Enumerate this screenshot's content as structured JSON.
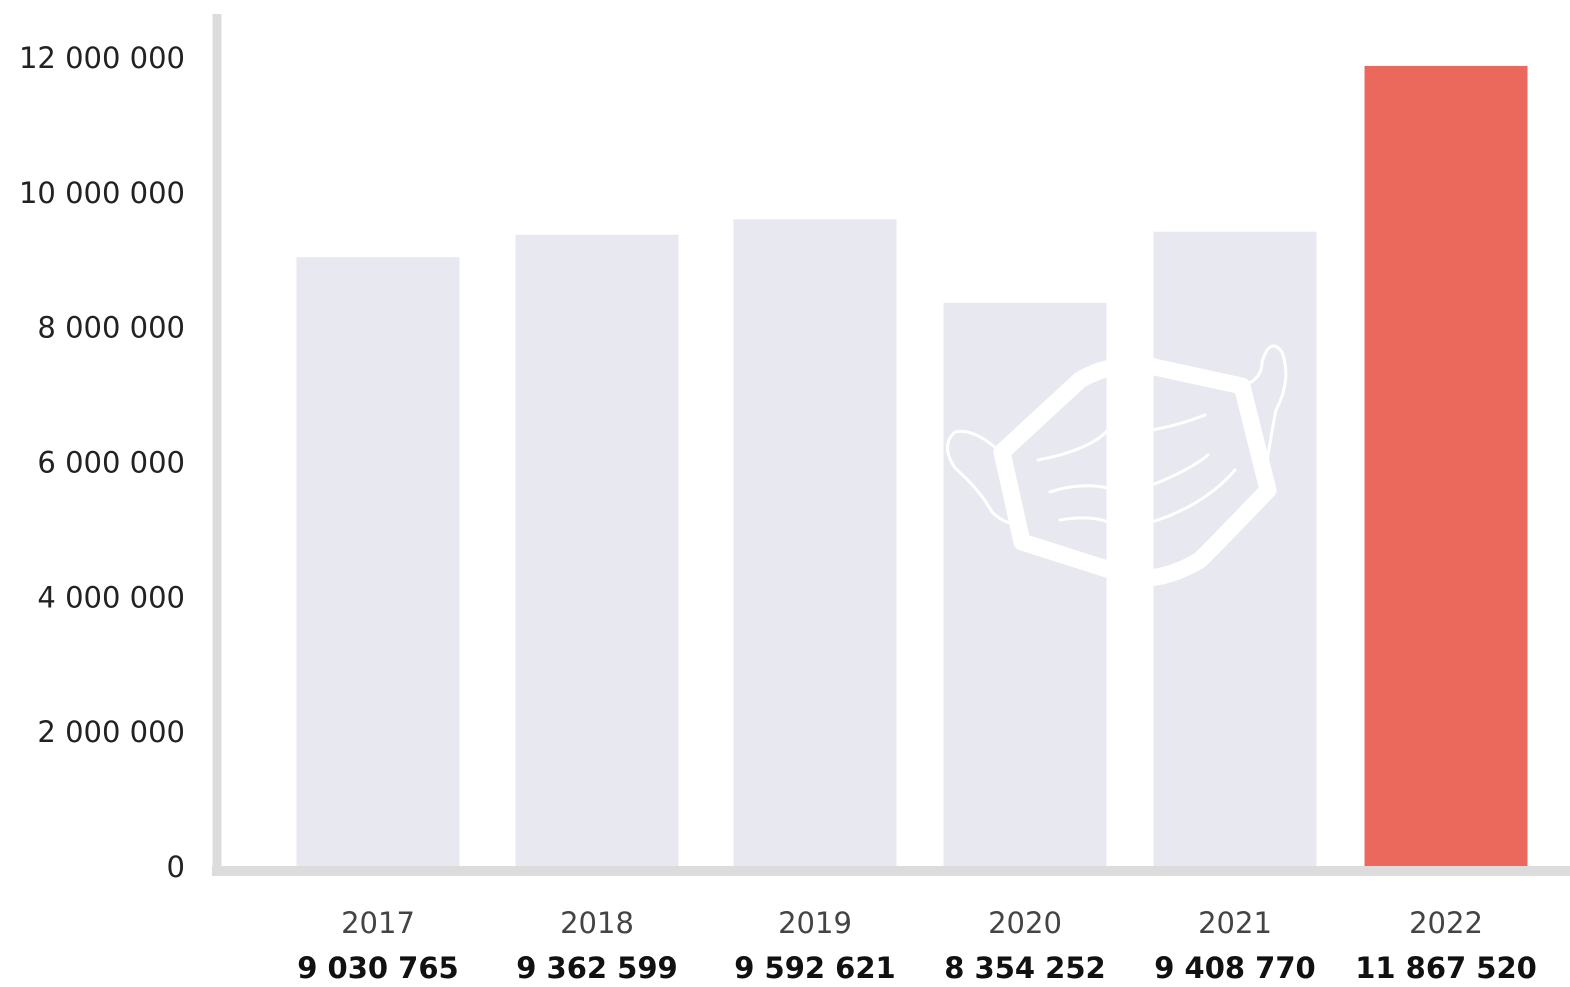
{
  "chart_data": {
    "type": "bar",
    "categories": [
      "2017",
      "2018",
      "2019",
      "2020",
      "2021",
      "2022"
    ],
    "values": [
      9030765,
      9362599,
      9592621,
      8354252,
      9408770,
      11867520
    ],
    "value_labels": [
      "9 030 765",
      "9 362 599",
      "9 592 621",
      "8 354 252",
      "9 408 770",
      "11 867 520"
    ],
    "y_ticks": [
      0,
      2000000,
      4000000,
      6000000,
      8000000,
      10000000,
      12000000
    ],
    "y_tick_labels": [
      "0",
      "2 000 000",
      "4 000 000",
      "6 000 000",
      "8 000 000",
      "10  000 000",
      "12  000 000"
    ],
    "ylim": [
      0,
      12000000
    ],
    "title": "",
    "xlabel": "",
    "ylabel": "",
    "grid": false,
    "legend": "none",
    "highlight_category": "2022",
    "decoration": "face-mask-icon",
    "colors": {
      "bar": "#e8e8f1",
      "highlight": "#ea695c",
      "axis": "#dcdcdc",
      "mask": "#ffffff"
    }
  }
}
